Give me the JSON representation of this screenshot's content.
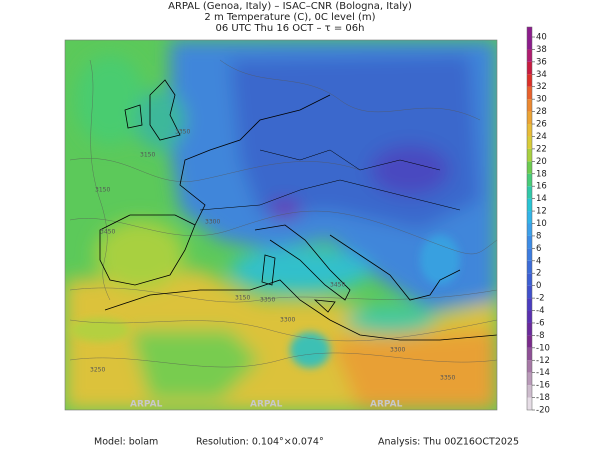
{
  "header": {
    "line1": "ARPAL (Genoa, Italy)  –  ISAC–CNR (Bologna, Italy)",
    "line2": "2 m Temperature (C), 0C level (m)",
    "line3": "06 UTC Thu 16 OCT  –  τ = 06h"
  },
  "colorbar": {
    "ticks": [
      -20,
      -18,
      -16,
      -14,
      -12,
      -10,
      -8,
      -6,
      -4,
      -2,
      0,
      2,
      4,
      6,
      8,
      10,
      12,
      14,
      16,
      18,
      20,
      22,
      24,
      26,
      28,
      30,
      32,
      34,
      36,
      38,
      40
    ],
    "colors": [
      "#e6dde6",
      "#cdbccd",
      "#b99ab9",
      "#a678a6",
      "#8e4f96",
      "#7a2a8c",
      "#6a2a9c",
      "#5a30b0",
      "#4a3cc0",
      "#4050cc",
      "#3c5fd4",
      "#3c6cd8",
      "#3c7ce0",
      "#3c8ce6",
      "#3ca0ea",
      "#32b4e8",
      "#28c4d4",
      "#30c8a8",
      "#48cc78",
      "#6ccc50",
      "#a8d040",
      "#d8cc38",
      "#e8bc38",
      "#eca434",
      "#ec8830",
      "#e8602c",
      "#dc3028",
      "#c81c40",
      "#b01c70",
      "#8c1c8c"
    ]
  },
  "map": {
    "contour_labels": [
      "3150",
      "3350",
      "3150",
      "3300",
      "3450",
      "3150",
      "3300",
      "3350",
      "3450",
      "3250",
      "3300",
      "3350"
    ],
    "watermark": "ARPAL"
  },
  "footer": {
    "model": "Model:  bolam",
    "resolution": "Resolution: 0.104°×0.074°",
    "analysis": "Analysis: Thu  00Z16OCT2025"
  }
}
